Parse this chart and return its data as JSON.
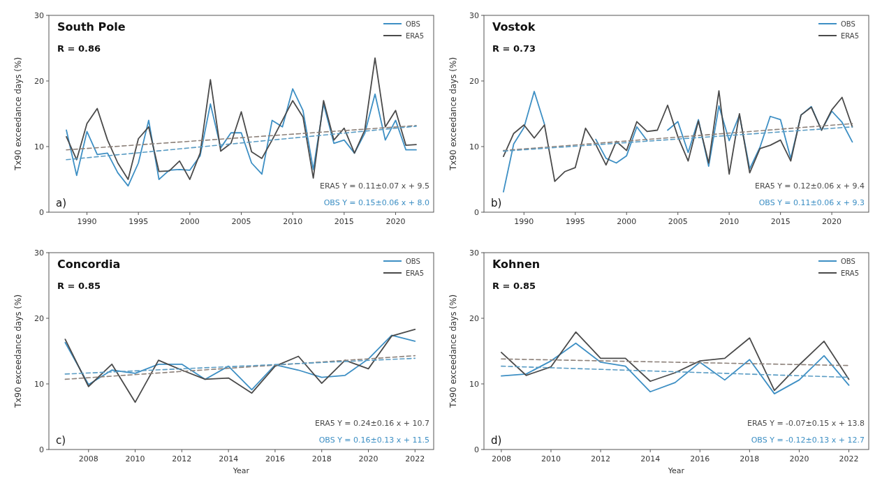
{
  "chart_data": [
    {
      "type": "line",
      "title": "South Pole",
      "ylabel": "Tx90 exceedance days (%)",
      "annotations": [
        "a)",
        "R = 0.86",
        "ERA5 Y = 0.11±0.07 x + 9.5",
        "OBS Y = 0.15±0.06 x + 8.0"
      ],
      "x": [
        1988,
        1989,
        1990,
        1991,
        1992,
        1993,
        1994,
        1995,
        1996,
        1997,
        1998,
        1999,
        2000,
        2001,
        2002,
        2003,
        2004,
        2005,
        2006,
        2007,
        2008,
        2009,
        2010,
        2011,
        2012,
        2013,
        2014,
        2015,
        2016,
        2017,
        2018,
        2019,
        2020,
        2021,
        2022
      ],
      "xlim": [
        1986.3,
        2023.7
      ],
      "xticks": [
        1990,
        1995,
        2000,
        2005,
        2010,
        2015,
        2020
      ],
      "ylim": [
        0,
        30
      ],
      "yticks": [
        0,
        10,
        20,
        30
      ],
      "legend": "top right",
      "grid": false,
      "series": [
        {
          "name": "OBS",
          "color": "#3d8fc4",
          "values": [
            12.5,
            5.6,
            12.3,
            8.8,
            9.0,
            6.0,
            4.0,
            7.5,
            14.0,
            5.0,
            6.4,
            6.5,
            6.4,
            8.6,
            16.5,
            9.8,
            12.1,
            12.1,
            7.5,
            5.8,
            14.0,
            13.0,
            18.8,
            15.5,
            6.5,
            16.5,
            10.5,
            11.0,
            9.0,
            12.0,
            18.0,
            11.0,
            14.0,
            9.5,
            9.5
          ]
        },
        {
          "name": "ERA5",
          "color": "#4a4a4a",
          "values": [
            11.5,
            8.0,
            13.5,
            15.8,
            11.0,
            7.5,
            5.0,
            11.2,
            13.0,
            6.2,
            6.3,
            7.8,
            5.0,
            9.0,
            20.2,
            9.3,
            10.5,
            15.3,
            9.2,
            8.2,
            11.0,
            14.0,
            17.0,
            14.5,
            5.2,
            17.0,
            11.0,
            12.8,
            9.0,
            12.5,
            23.5,
            13.0,
            15.5,
            10.2,
            10.3
          ]
        },
        {
          "type": "line",
          "color": "#8c8079",
          "line_style": "dashed",
          "x": [
            1988,
            2022
          ],
          "values": [
            9.5,
            13.2
          ]
        },
        {
          "type": "line",
          "color": "#5a9cc4",
          "line_style": "dashed",
          "x": [
            1988,
            2022
          ],
          "values": [
            8.0,
            13.1
          ]
        }
      ]
    },
    {
      "type": "line",
      "title": "Vostok",
      "ylabel": "Tx90 exceedance days (%)",
      "annotations": [
        "b)",
        "R = 0.73",
        "ERA5 Y = 0.12±0.06 x + 9.4",
        "OBS Y = 0.11±0.06 x + 9.3"
      ],
      "x": [
        1988,
        1989,
        1990,
        1991,
        1992,
        1993,
        1994,
        1995,
        1996,
        1997,
        1998,
        1999,
        2000,
        2001,
        2002,
        2003,
        2004,
        2005,
        2006,
        2007,
        2008,
        2009,
        2010,
        2011,
        2012,
        2013,
        2014,
        2015,
        2016,
        2017,
        2018,
        2019,
        2020,
        2021,
        2022
      ],
      "xlim": [
        1986.1,
        2023.6
      ],
      "xticks": [
        1990,
        1995,
        2000,
        2005,
        2010,
        2015,
        2020
      ],
      "ylim": [
        0,
        30
      ],
      "yticks": [
        0,
        10,
        20,
        30
      ],
      "legend": "top right",
      "grid": false,
      "series": [
        {
          "name": "OBS",
          "color": "#3d8fc4",
          "values": [
            3.1,
            10.4,
            12.9,
            18.4,
            13.4,
            null,
            null,
            null,
            null,
            11.1,
            8.2,
            7.5,
            8.6,
            13.0,
            10.9,
            null,
            12.5,
            13.8,
            9.1,
            14.1,
            7.0,
            16.2,
            10.9,
            14.8,
            6.6,
            9.9,
            14.6,
            14.1,
            8.2,
            14.8,
            16.1,
            12.5,
            15.4,
            13.7,
            10.7
          ]
        },
        {
          "name": "ERA5",
          "color": "#4a4a4a",
          "values": [
            8.5,
            12.0,
            13.3,
            11.3,
            13.3,
            4.7,
            6.2,
            6.8,
            12.8,
            10.3,
            7.2,
            10.8,
            9.4,
            13.8,
            12.3,
            12.5,
            16.3,
            11.5,
            7.8,
            13.9,
            7.5,
            18.5,
            5.8,
            15.0,
            6.0,
            9.7,
            10.2,
            11.0,
            7.8,
            14.8,
            16.0,
            12.5,
            15.6,
            17.5,
            13.0
          ]
        },
        {
          "type": "line",
          "color": "#8c8079",
          "line_style": "dashed",
          "x": [
            1988,
            2022
          ],
          "values": [
            9.4,
            13.5
          ]
        },
        {
          "type": "line",
          "color": "#5a9cc4",
          "line_style": "dashed",
          "x": [
            1988,
            2022
          ],
          "values": [
            9.3,
            13.0
          ]
        }
      ]
    },
    {
      "type": "line",
      "title": "Concordia",
      "xlabel": "Year",
      "ylabel": "Tx90 exceedance days (%)",
      "annotations": [
        "c)",
        "R = 0.85",
        "ERA5 Y = 0.24±0.16 x + 10.7",
        "OBS Y = 0.16±0.13 x + 11.5"
      ],
      "x": [
        2007,
        2008,
        2009,
        2010,
        2011,
        2012,
        2013,
        2014,
        2015,
        2016,
        2017,
        2018,
        2019,
        2020,
        2021,
        2022
      ],
      "xlim": [
        2006.3,
        2022.8
      ],
      "xticks": [
        2008,
        2010,
        2012,
        2014,
        2016,
        2018,
        2020,
        2022
      ],
      "ylim": [
        0,
        30
      ],
      "yticks": [
        0,
        10,
        20,
        30
      ],
      "legend": "top right",
      "grid": false,
      "series": [
        {
          "name": "OBS",
          "color": "#3d8fc4",
          "values": [
            16.3,
            9.9,
            12.1,
            11.6,
            13.0,
            13.0,
            10.7,
            12.7,
            9.1,
            12.9,
            12.1,
            11.0,
            11.3,
            13.8,
            17.4,
            16.5
          ]
        },
        {
          "name": "ERA5",
          "color": "#4a4a4a",
          "values": [
            16.8,
            9.6,
            13.0,
            7.2,
            13.6,
            12.1,
            10.7,
            10.9,
            8.6,
            12.7,
            14.2,
            10.1,
            13.6,
            12.3,
            17.3,
            18.3
          ]
        },
        {
          "type": "line",
          "color": "#8c8079",
          "line_style": "dashed",
          "x": [
            2007,
            2022
          ],
          "values": [
            10.7,
            14.3
          ]
        },
        {
          "type": "line",
          "color": "#5a9cc4",
          "line_style": "dashed",
          "x": [
            2007,
            2022
          ],
          "values": [
            11.5,
            13.9
          ]
        }
      ]
    },
    {
      "type": "line",
      "title": "Kohnen",
      "xlabel": "Year",
      "ylabel": "Tx90 exceedance days (%)",
      "annotations": [
        "d)",
        "R = 0.85",
        "ERA5 Y = -0.07±0.15 x + 13.8",
        "OBS Y = -0.12±0.13 x + 12.7"
      ],
      "x": [
        2008,
        2009,
        2010,
        2011,
        2012,
        2013,
        2014,
        2015,
        2016,
        2017,
        2018,
        2019,
        2020,
        2021,
        2022
      ],
      "xlim": [
        2007.3,
        2022.8
      ],
      "xticks": [
        2008,
        2010,
        2012,
        2014,
        2016,
        2018,
        2020,
        2022
      ],
      "ylim": [
        0,
        30
      ],
      "yticks": [
        0,
        10,
        20,
        30
      ],
      "legend": "top right",
      "grid": false,
      "series": [
        {
          "name": "OBS",
          "color": "#3d8fc4",
          "values": [
            11.2,
            11.5,
            13.5,
            16.2,
            13.3,
            12.7,
            8.8,
            10.2,
            13.3,
            10.6,
            13.7,
            8.5,
            10.6,
            14.3,
            9.8
          ]
        },
        {
          "name": "ERA5",
          "color": "#4a4a4a",
          "values": [
            14.8,
            11.3,
            12.6,
            17.9,
            13.9,
            13.9,
            10.4,
            11.7,
            13.5,
            13.9,
            17.0,
            9.0,
            12.9,
            16.5,
            10.7
          ]
        },
        {
          "type": "line",
          "color": "#8c8079",
          "line_style": "dashed",
          "x": [
            2008,
            2022
          ],
          "values": [
            13.8,
            12.8
          ]
        },
        {
          "type": "line",
          "color": "#5a9cc4",
          "line_style": "dashed",
          "x": [
            2008,
            2022
          ],
          "values": [
            12.7,
            11.0
          ]
        }
      ]
    }
  ]
}
